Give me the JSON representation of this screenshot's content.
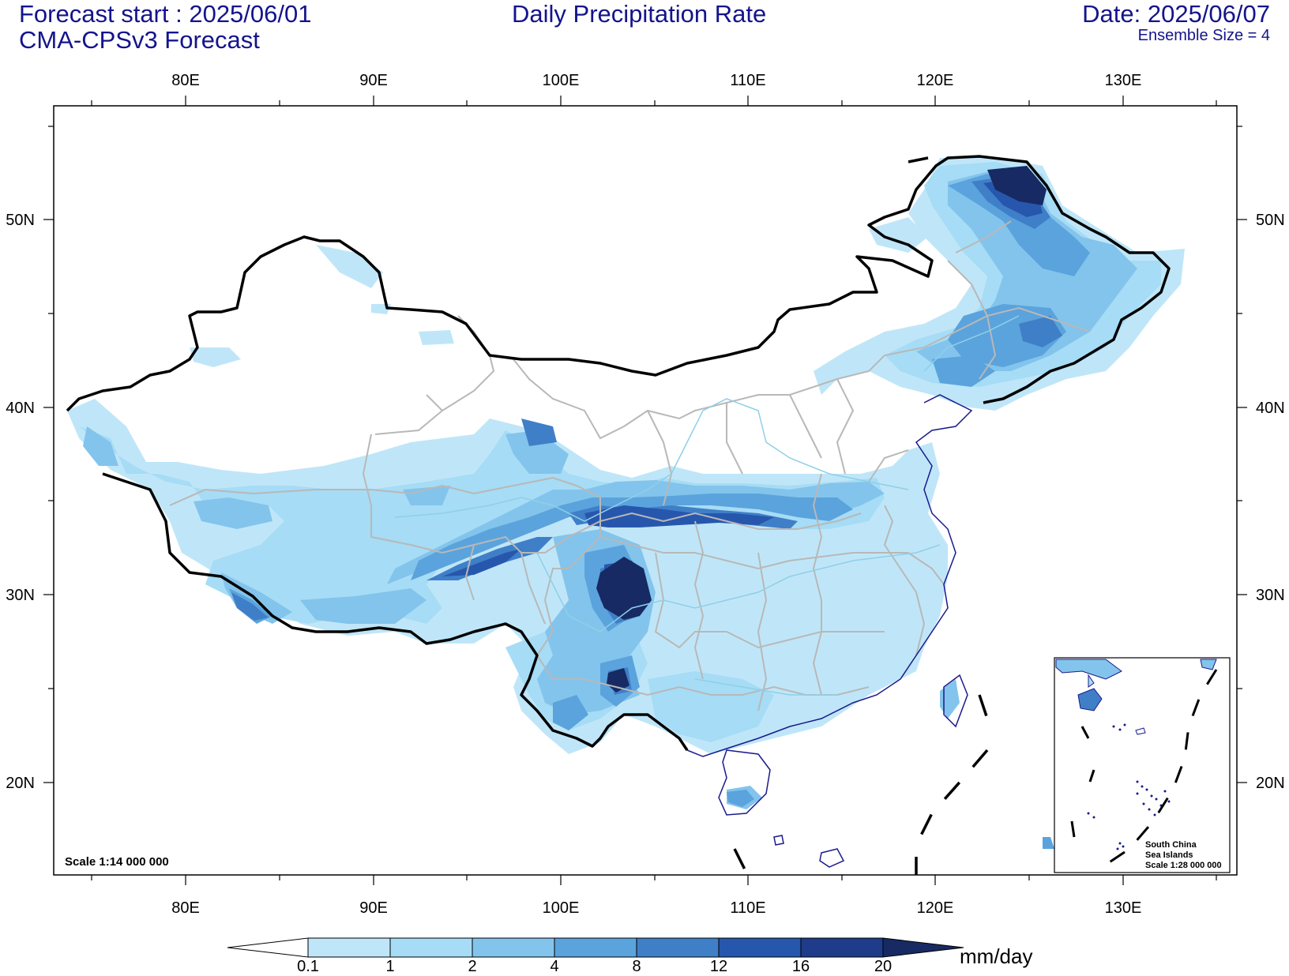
{
  "header": {
    "forecast_start": "Forecast start : 2025/06/01",
    "model": "CMA-CPSv3 Forecast",
    "title": "Daily Precipitation Rate",
    "date": "Date: 2025/06/07",
    "ensemble": "Ensemble Size = 4"
  },
  "axes": {
    "lon_labels": [
      "80E",
      "90E",
      "100E",
      "110E",
      "120E",
      "130E"
    ],
    "lat_labels": [
      "50N",
      "40N",
      "30N",
      "20N"
    ]
  },
  "map": {
    "scale": "Scale 1:14 000 000",
    "inset": {
      "line1": "South China",
      "line2": "Sea Islands",
      "line3": "Scale 1:28 000 000"
    }
  },
  "colorbar": {
    "unit": "mm/day",
    "levels": [
      "0.1",
      "1",
      "2",
      "4",
      "8",
      "12",
      "16",
      "20"
    ],
    "colors": [
      "#ffffff",
      "#bfe6f8",
      "#a6dcf5",
      "#83c4ec",
      "#5ba3dc",
      "#3f7fc8",
      "#2757ad",
      "#1e3c8a",
      "#172a63"
    ]
  },
  "colors": {
    "text": "#14148c",
    "border": "#000000",
    "province": "#b8b8b8",
    "river": "#8fcfe8",
    "coast": "#1a1a8c"
  }
}
